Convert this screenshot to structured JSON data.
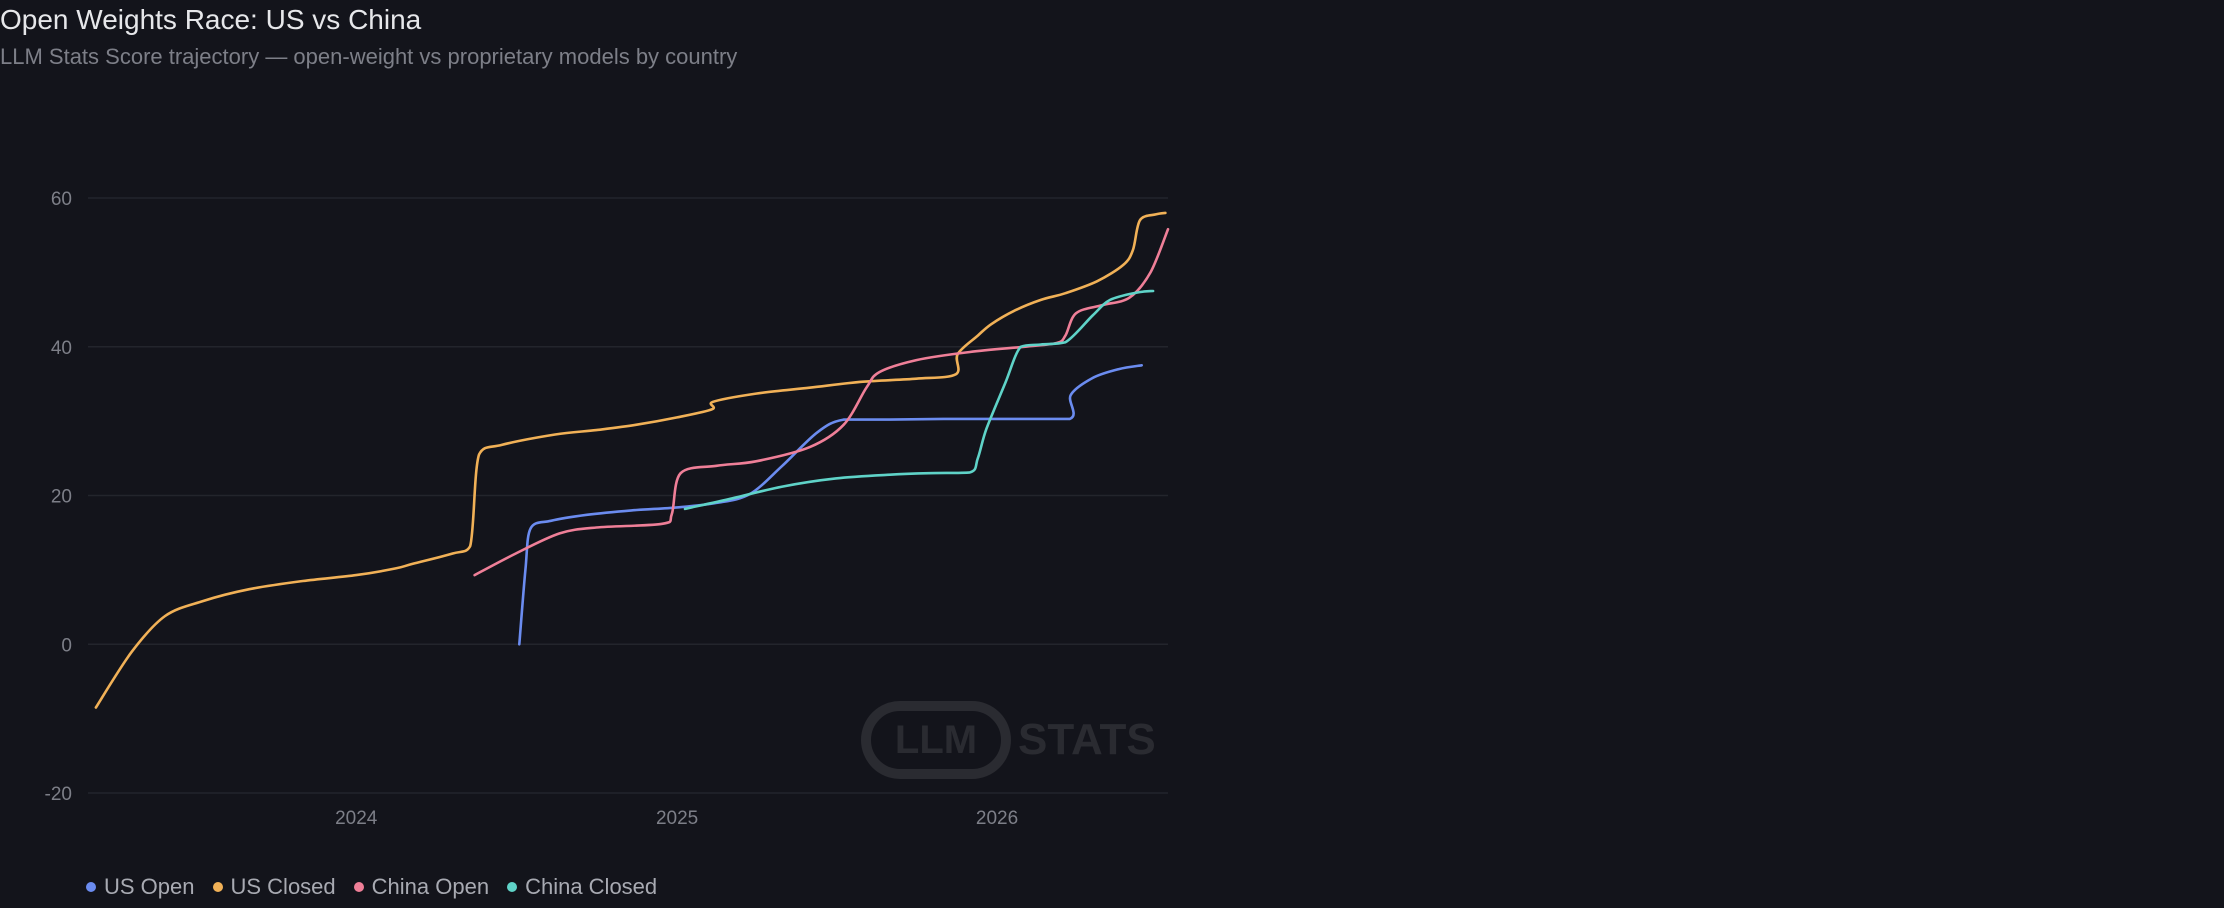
{
  "header": {
    "title": "Open Weights Race: US vs China",
    "subtitle": "LLM Stats Score trajectory — open-weight vs proprietary models by country"
  },
  "watermark": {
    "badge": "LLM",
    "text": "STATS",
    "color": "#2a2b31"
  },
  "colors": {
    "background": "#13141b",
    "grid": "#23252c",
    "axis_text": "#7d7f88"
  },
  "chart_data": {
    "type": "line",
    "title": "Open Weights Race: US vs China",
    "subtitle": "LLM Stats Score trajectory — open-weight vs proprietary models by country",
    "xlabel": "",
    "ylabel": "",
    "ylim": [
      -20,
      60
    ],
    "y_ticks": [
      -20,
      0,
      20,
      40,
      60
    ],
    "x_ticks": [
      "2024",
      "2025",
      "2026"
    ],
    "xlim": [
      "2023-03-01",
      "2026-07-15"
    ],
    "grid": true,
    "legend_position": "bottom-left",
    "series": [
      {
        "name": "US Open",
        "color": "#6b8cf0",
        "points": [
          [
            "2024-07-05",
            0
          ],
          [
            "2024-07-12",
            10
          ],
          [
            "2024-07-18",
            15.6
          ],
          [
            "2024-08-10",
            16.6
          ],
          [
            "2024-09-20",
            17.4
          ],
          [
            "2024-11-10",
            18
          ],
          [
            "2025-01-01",
            18.4
          ],
          [
            "2025-02-15",
            19
          ],
          [
            "2025-03-25",
            20.2
          ],
          [
            "2025-05-01",
            24
          ],
          [
            "2025-06-10",
            28.5
          ],
          [
            "2025-07-10",
            30.2
          ],
          [
            "2025-09-01",
            30.2
          ],
          [
            "2025-11-01",
            30.3
          ],
          [
            "2026-01-15",
            30.3
          ],
          [
            "2026-03-25",
            30.3
          ],
          [
            "2026-03-26",
            33.5
          ],
          [
            "2026-04-20",
            35.8
          ],
          [
            "2026-05-20",
            37
          ],
          [
            "2026-06-15",
            37.5
          ]
        ]
      },
      {
        "name": "US Closed",
        "color": "#f1b157",
        "points": [
          [
            "2023-03-10",
            -8.5
          ],
          [
            "2023-04-20",
            -1
          ],
          [
            "2023-05-28",
            3.8
          ],
          [
            "2023-07-10",
            5.8
          ],
          [
            "2023-09-01",
            7.4
          ],
          [
            "2023-11-01",
            8.5
          ],
          [
            "2024-01-01",
            9.3
          ],
          [
            "2024-02-15",
            10.2
          ],
          [
            "2024-03-05",
            10.8
          ],
          [
            "2024-04-20",
            12.2
          ],
          [
            "2024-05-10",
            13.2
          ],
          [
            "2024-05-20",
            25.5
          ],
          [
            "2024-06-15",
            26.8
          ],
          [
            "2024-08-15",
            28.2
          ],
          [
            "2024-10-01",
            28.8
          ],
          [
            "2024-11-15",
            29.5
          ],
          [
            "2025-01-01",
            30.5
          ],
          [
            "2025-02-10",
            31.6
          ],
          [
            "2025-02-11",
            32.6
          ],
          [
            "2025-04-01",
            33.7
          ],
          [
            "2025-06-01",
            34.5
          ],
          [
            "2025-08-01",
            35.3
          ],
          [
            "2025-10-01",
            35.7
          ],
          [
            "2025-11-15",
            36.3
          ],
          [
            "2025-11-17",
            39
          ],
          [
            "2025-12-10",
            41.5
          ],
          [
            "2025-12-25",
            43
          ],
          [
            "2026-01-20",
            44.8
          ],
          [
            "2026-02-20",
            46.3
          ],
          [
            "2026-03-20",
            47.2
          ],
          [
            "2026-04-25",
            48.8
          ],
          [
            "2026-05-25",
            51
          ],
          [
            "2026-06-05",
            53
          ],
          [
            "2026-06-13",
            57
          ],
          [
            "2026-07-01",
            57.8
          ],
          [
            "2026-07-12",
            58
          ]
        ]
      },
      {
        "name": "China Open",
        "color": "#ef7f98",
        "points": [
          [
            "2024-05-15",
            9.3
          ],
          [
            "2024-07-01",
            12.2
          ],
          [
            "2024-08-20",
            14.9
          ],
          [
            "2024-10-01",
            15.7
          ],
          [
            "2024-12-15",
            16.2
          ],
          [
            "2024-12-26",
            17.5
          ],
          [
            "2025-01-05",
            23
          ],
          [
            "2025-02-15",
            24
          ],
          [
            "2025-04-01",
            24.6
          ],
          [
            "2025-06-01",
            26.5
          ],
          [
            "2025-07-10",
            29.5
          ],
          [
            "2025-08-05",
            34.5
          ],
          [
            "2025-08-20",
            36.6
          ],
          [
            "2025-10-01",
            38.2
          ],
          [
            "2025-12-01",
            39.3
          ],
          [
            "2026-02-01",
            40
          ],
          [
            "2026-03-10",
            40.5
          ],
          [
            "2026-03-20",
            41.5
          ],
          [
            "2026-04-01",
            44.5
          ],
          [
            "2026-05-01",
            45.6
          ],
          [
            "2026-06-01",
            46.6
          ],
          [
            "2026-06-25",
            50
          ],
          [
            "2026-07-15",
            55.8
          ]
        ]
      },
      {
        "name": "China Closed",
        "color": "#5fd3c8",
        "points": [
          [
            "2025-01-10",
            18.2
          ],
          [
            "2025-03-01",
            19.5
          ],
          [
            "2025-05-01",
            21.2
          ],
          [
            "2025-07-01",
            22.3
          ],
          [
            "2025-09-01",
            22.8
          ],
          [
            "2025-10-15",
            23
          ],
          [
            "2025-12-01",
            23.1
          ],
          [
            "2025-12-10",
            25
          ],
          [
            "2025-12-20",
            29
          ],
          [
            "2026-01-10",
            35
          ],
          [
            "2026-01-28",
            40
          ],
          [
            "2026-02-20",
            40.3
          ],
          [
            "2026-03-20",
            40.6
          ],
          [
            "2026-04-20",
            44.2
          ],
          [
            "2026-05-10",
            46.3
          ],
          [
            "2026-06-10",
            47.3
          ],
          [
            "2026-06-28",
            47.5
          ]
        ]
      }
    ]
  }
}
